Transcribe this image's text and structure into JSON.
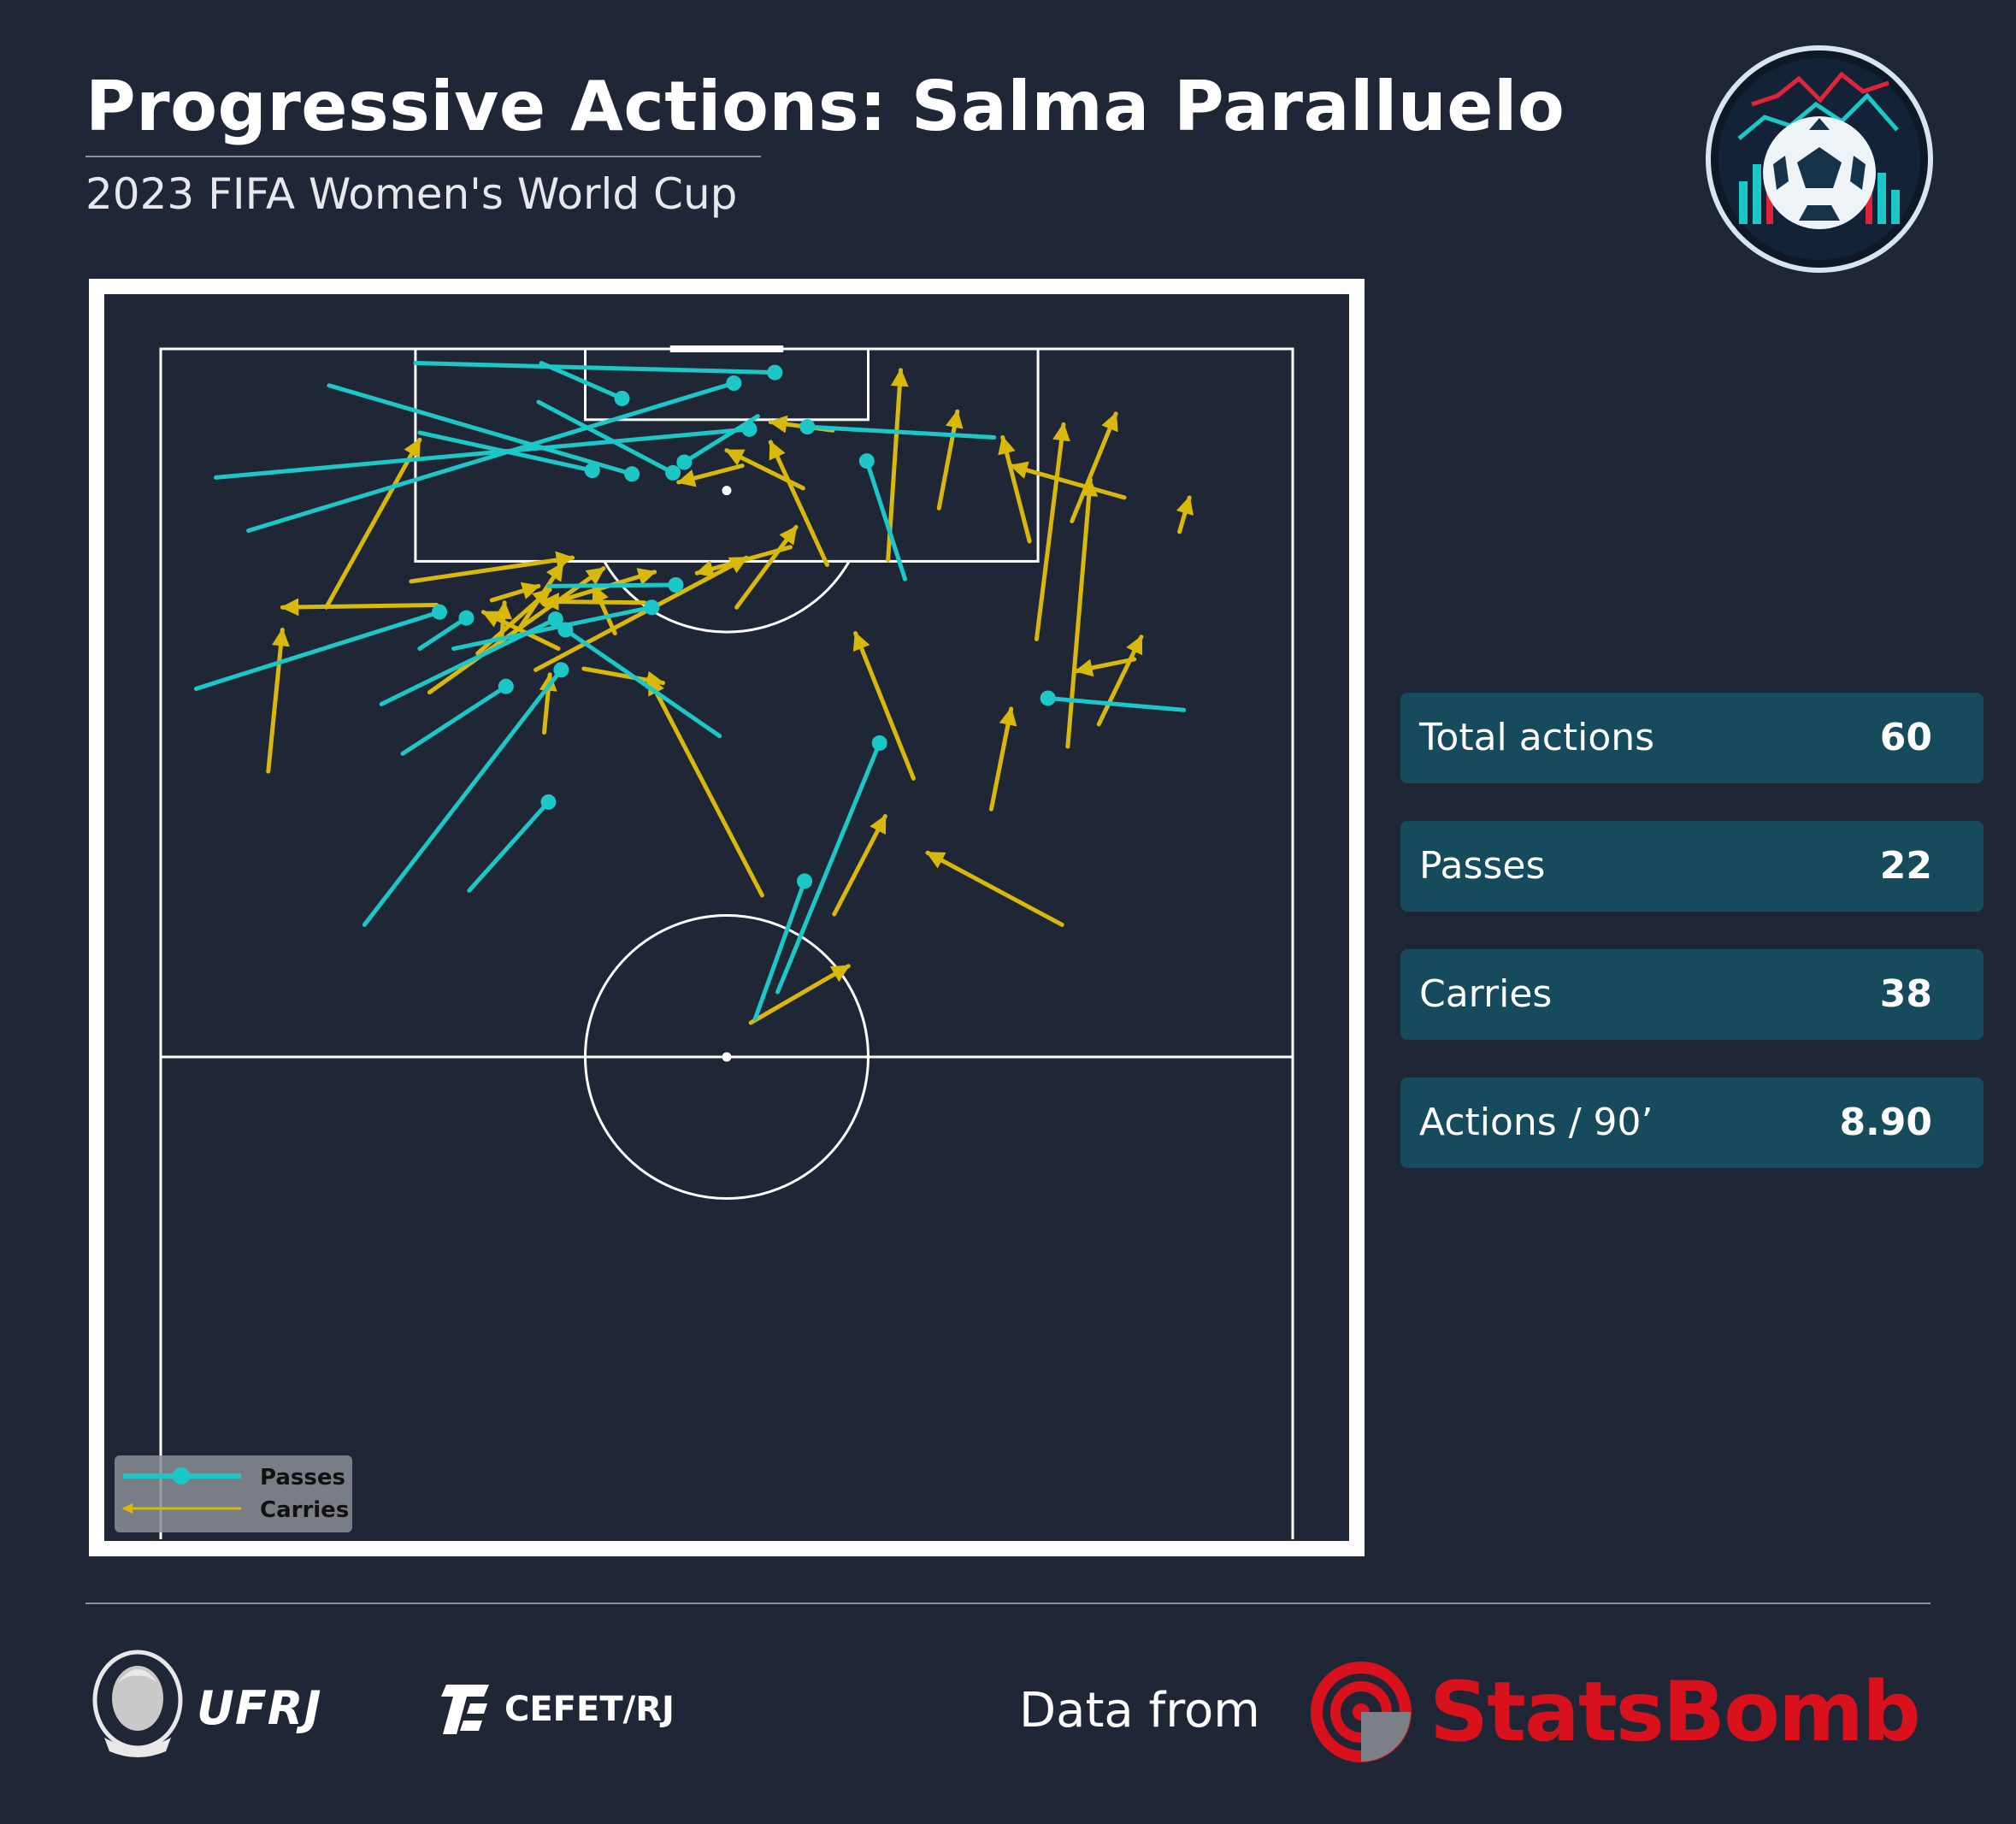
{
  "header": {
    "title": "Progressive Actions: Salma Paralluelo",
    "subtitle": "2023 FIFA Women's World Cup"
  },
  "stats": [
    {
      "label": "Total actions",
      "value": "60"
    },
    {
      "label": "Passes",
      "value": "22"
    },
    {
      "label": "Carries",
      "value": "38"
    },
    {
      "label": "Actions / 90’",
      "value": "8.90"
    }
  ],
  "footer": {
    "ufrj": "UFRJ",
    "cefet": "CEFET/RJ",
    "data_from": "Data from",
    "provider": "StatsBomb"
  },
  "colors": {
    "background": "#1f2736",
    "pass": "#1cc7c7",
    "carry": "#d9b80c",
    "card": "#164b5d",
    "statsbomb_red": "#d8111c"
  },
  "chart_data": {
    "type": "scatter",
    "pitch": {
      "length": 120,
      "width": 80,
      "orientation": "vertical-half",
      "visible_x_range": [
        50,
        120
      ]
    },
    "legend": {
      "position": "bottom-left",
      "entries": [
        {
          "label": "Passes",
          "series": "passes"
        },
        {
          "label": "Carries",
          "series": "carries"
        }
      ]
    },
    "series": [
      {
        "name": "Passes",
        "key": "passes",
        "marker": "start-dot",
        "actions": [
          {
            "start": [
              118,
              43.4
            ],
            "end": [
              118.8,
              18
            ]
          },
          {
            "start": [
              115.8,
              32.6
            ],
            "end": [
              118.8,
              26.9
            ]
          },
          {
            "start": [
              113.2,
              41.6
            ],
            "end": [
              109.1,
              3.9
            ]
          },
          {
            "start": [
              113.4,
              45.7
            ],
            "end": [
              112.5,
              58.9
            ]
          },
          {
            "start": [
              110.4,
              37
            ],
            "end": [
              114.3,
              42.2
            ]
          },
          {
            "start": [
              109.4,
              33.3
            ],
            "end": [
              116.9,
              11.9
            ]
          },
          {
            "start": [
              109.5,
              36.2
            ],
            "end": [
              115.5,
              26.7
            ]
          },
          {
            "start": [
              109.7,
              30.5
            ],
            "end": [
              112.9,
              18.3
            ]
          },
          {
            "start": [
              110.5,
              49.9
            ],
            "end": [
              100.5,
              52.6
            ]
          },
          {
            "start": [
              117.1,
              40.5
            ],
            "end": [
              104.6,
              6.2
            ]
          },
          {
            "start": [
              100,
              36.4
            ],
            "end": [
              99.9,
              27.4
            ]
          },
          {
            "start": [
              98.1,
              34.7
            ],
            "end": [
              94.6,
              20.7
            ]
          },
          {
            "start": [
              97.2,
              21.6
            ],
            "end": [
              94.6,
              18.3
            ]
          },
          {
            "start": [
              97.7,
              19.7
            ],
            "end": [
              91.2,
              2.5
            ]
          },
          {
            "start": [
              97.1,
              27.9
            ],
            "end": [
              89.9,
              15.6
            ]
          },
          {
            "start": [
              96.2,
              28.6
            ],
            "end": [
              87.2,
              39.5
            ]
          },
          {
            "start": [
              92.8,
              28.3
            ],
            "end": [
              71.2,
              14.4
            ]
          },
          {
            "start": [
              91.4,
              24.4
            ],
            "end": [
              85.7,
              17.1
            ]
          },
          {
            "start": [
              81.6,
              27.4
            ],
            "end": [
              74.1,
              21.8
            ]
          },
          {
            "start": [
              86.6,
              50.8
            ],
            "end": [
              65.5,
              43.6
            ]
          },
          {
            "start": [
              90.4,
              62.7
            ],
            "end": [
              89.4,
              72.3
            ]
          },
          {
            "start": [
              74.9,
              45.5
            ],
            "end": [
              63.2,
              42
            ]
          }
        ]
      },
      {
        "name": "Carries",
        "key": "carries",
        "marker": "end-arrow",
        "actions": [
          {
            "start": [
              113.1,
              47.5
            ],
            "end": [
              113.8,
              43.1
            ]
          },
          {
            "start": [
              102.1,
              51.4
            ],
            "end": [
              118.2,
              52.3
            ]
          },
          {
            "start": [
              106.5,
              55
            ],
            "end": [
              114.7,
              56.3
            ]
          },
          {
            "start": [
              103.7,
              61.4
            ],
            "end": [
              112.5,
              59.5
            ]
          },
          {
            "start": [
              95.4,
              61.9
            ],
            "end": [
              113.6,
              63.8
            ]
          },
          {
            "start": [
              86.3,
              64.1
            ],
            "end": [
              108.9,
              65.7
            ]
          },
          {
            "start": [
              105.4,
              64.4
            ],
            "end": [
              114.5,
              67.5
            ]
          },
          {
            "start": [
              104.5,
              72
            ],
            "end": [
              107.4,
              72.7
            ]
          },
          {
            "start": [
              88.2,
              66.3
            ],
            "end": [
              95.6,
              69.3
            ]
          },
          {
            "start": [
              83.6,
              53.2
            ],
            "end": [
              95.9,
              49.1
            ]
          },
          {
            "start": [
              73.7,
              42.5
            ],
            "end": [
              92.1,
              34.5
            ]
          },
          {
            "start": [
              72.1,
              47.6
            ],
            "end": [
              80.4,
              51.2
            ]
          },
          {
            "start": [
              62.9,
              41.7
            ],
            "end": [
              67.7,
              48.6
            ]
          },
          {
            "start": [
              71.2,
              63.7
            ],
            "end": [
              77.3,
              54.2
            ]
          },
          {
            "start": [
              93.7,
              68.8
            ],
            "end": [
              92.7,
              64.7
            ]
          },
          {
            "start": [
              107.4,
              68.1
            ],
            "end": [
              110.1,
              60.1
            ]
          },
          {
            "start": [
              101.7,
              47.1
            ],
            "end": [
              112.1,
              43.1
            ]
          },
          {
            "start": [
              103.2,
              44.5
            ],
            "end": [
              101,
              37.9
            ]
          },
          {
            "start": [
              81,
              58.7
            ],
            "end": [
              89.5,
              60.1
            ]
          },
          {
            "start": [
              110.1,
              41.1
            ],
            "end": [
              108.7,
              36.6
            ]
          },
          {
            "start": [
              98.5,
              34.2
            ],
            "end": [
              98.6,
              27
            ]
          },
          {
            "start": [
              92.9,
              29.9
            ],
            "end": [
              91.7,
              35.5
            ]
          },
          {
            "start": [
              87.5,
              27.1
            ],
            "end": [
              92.4,
              27.5
            ]
          },
          {
            "start": [
              84.2,
              7.6
            ],
            "end": [
              96.2,
              8.6
            ]
          },
          {
            "start": [
              98.1,
              40.7
            ],
            "end": [
              104.9,
              44.9
            ]
          },
          {
            "start": [
              95.9,
              32.1
            ],
            "end": [
              99.9,
              30.6
            ]
          },
          {
            "start": [
              96.4,
              25.4
            ],
            "end": [
              101.8,
              28.4
            ]
          },
          {
            "start": [
              90.9,
              19
            ],
            "end": [
              101.4,
              31.3
            ]
          },
          {
            "start": [
              92.8,
              26.5
            ],
            "end": [
              102.3,
              41.4
            ]
          },
          {
            "start": [
              95.6,
              24.1
            ],
            "end": [
              98.5,
              24.3
            ]
          },
          {
            "start": [
              94.2,
              22.4
            ],
            "end": [
              99.6,
              27.5
            ]
          },
          {
            "start": [
              98.3,
              19.5
            ],
            "end": [
              98.1,
              8.6
            ]
          },
          {
            "start": [
              98.1,
              11.7
            ],
            "end": [
              112.3,
              18.3
            ]
          },
          {
            "start": [
              94.6,
              28.1
            ],
            "end": [
              97.7,
              22.8
            ]
          },
          {
            "start": [
              100.3,
              17.7
            ],
            "end": [
              102.3,
              29.1
            ]
          },
          {
            "start": [
              98.3,
              27.2
            ],
            "end": [
              101.1,
              34.9
            ]
          },
          {
            "start": [
              98.7,
              23.4
            ],
            "end": [
              99.9,
              26.7
            ]
          },
          {
            "start": [
              108.2,
              45.4
            ],
            "end": [
              111.4,
              40
            ]
          }
        ]
      }
    ]
  }
}
